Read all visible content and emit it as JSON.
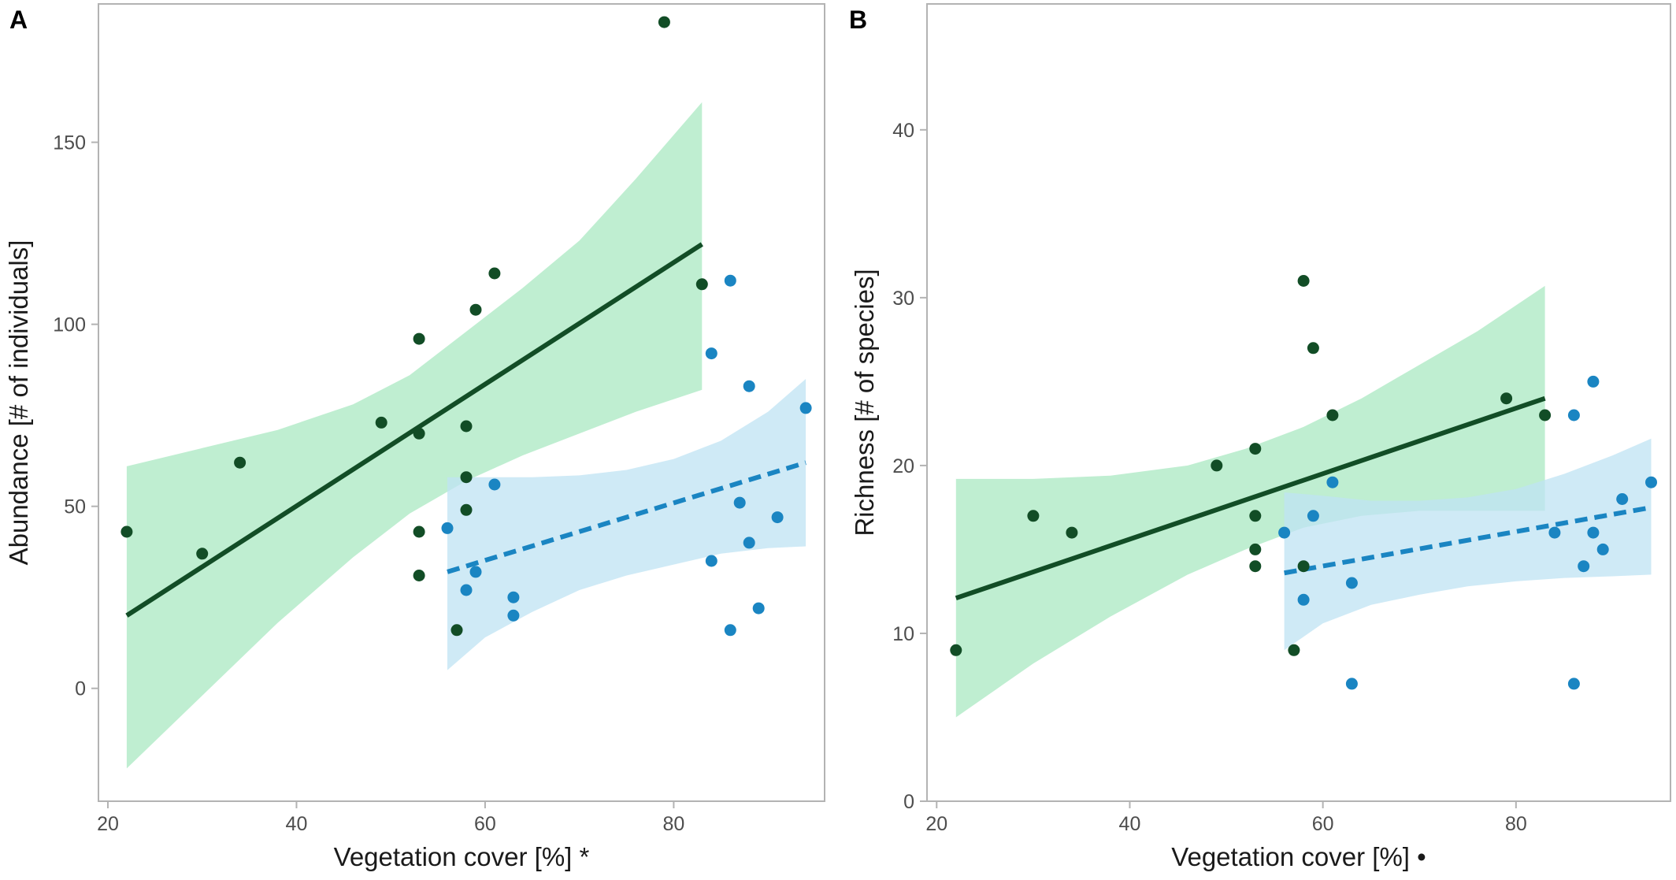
{
  "colors": {
    "dark_series": "#124d26",
    "blue_series": "#1a85c2",
    "green_band": "#a9e8c1",
    "blue_band": "#bfe3f3",
    "axis": "#b3b3b3",
    "tick_text": "#4d4d4d"
  },
  "chart_data": [
    {
      "panel_label": "A",
      "type": "scatter",
      "xlabel": "Vegetation cover [%] *",
      "ylabel": "Abundance [# of individuals]",
      "xlim": [
        19,
        96
      ],
      "ylim": [
        -31,
        188
      ],
      "xticks": [
        20,
        40,
        60,
        80
      ],
      "yticks": [
        0,
        50,
        100,
        150
      ],
      "grid": false,
      "series": [
        {
          "color": "#124d26",
          "band_color": "#a9e8c1",
          "line_style": "solid",
          "points": [
            [
              22,
              43
            ],
            [
              30,
              37
            ],
            [
              34,
              62
            ],
            [
              49,
              73
            ],
            [
              53,
              96
            ],
            [
              53,
              70
            ],
            [
              53,
              43
            ],
            [
              53,
              31
            ],
            [
              57,
              16
            ],
            [
              58,
              72
            ],
            [
              58,
              58
            ],
            [
              58,
              49
            ],
            [
              59,
              104
            ],
            [
              61,
              114
            ],
            [
              79,
              183
            ],
            [
              83,
              111
            ]
          ],
          "fit": {
            "x": [
              22,
              83
            ],
            "y": [
              20,
              122
            ]
          },
          "band": {
            "x": [
              22,
              30,
              38,
              46,
              52,
              58,
              64,
              70,
              76,
              83
            ],
            "lower": [
              -22,
              -2,
              18,
              36,
              48,
              57,
              64,
              70,
              76,
              82
            ],
            "upper": [
              61,
              66,
              71,
              78,
              86,
              98,
              110,
              123,
              140,
              161
            ]
          }
        },
        {
          "color": "#1a85c2",
          "band_color": "#bfe3f3",
          "line_style": "dashed",
          "points": [
            [
              56,
              44
            ],
            [
              58,
              27
            ],
            [
              59,
              32
            ],
            [
              61,
              56
            ],
            [
              63,
              25
            ],
            [
              63,
              20
            ],
            [
              84,
              92
            ],
            [
              84,
              35
            ],
            [
              86,
              112
            ],
            [
              86,
              16
            ],
            [
              87,
              51
            ],
            [
              88,
              83
            ],
            [
              88,
              40
            ],
            [
              89,
              22
            ],
            [
              91,
              47
            ],
            [
              94,
              77
            ]
          ],
          "fit": {
            "x": [
              56,
              94
            ],
            "y": [
              32,
              62
            ]
          },
          "band": {
            "x": [
              56,
              60,
              65,
              70,
              75,
              80,
              85,
              90,
              94
            ],
            "lower": [
              5,
              14,
              21,
              27,
              31,
              34,
              37,
              38.5,
              39
            ],
            "upper": [
              58,
              58,
              58,
              58.5,
              60,
              63,
              68,
              76,
              85
            ]
          }
        }
      ]
    },
    {
      "panel_label": "B",
      "type": "scatter",
      "xlabel": "Vegetation cover [%] •",
      "ylabel": "Richness [# of species]",
      "xlim": [
        19,
        96
      ],
      "ylim": [
        0,
        47.5
      ],
      "xticks": [
        20,
        40,
        60,
        80
      ],
      "yticks": [
        0,
        10,
        20,
        30,
        40
      ],
      "grid": false,
      "series": [
        {
          "color": "#124d26",
          "band_color": "#a9e8c1",
          "line_style": "solid",
          "points": [
            [
              22,
              9
            ],
            [
              30,
              17
            ],
            [
              34,
              16
            ],
            [
              49,
              20
            ],
            [
              53,
              21
            ],
            [
              53,
              17
            ],
            [
              53,
              15
            ],
            [
              53,
              14
            ],
            [
              57,
              9
            ],
            [
              58,
              31
            ],
            [
              58,
              14
            ],
            [
              59,
              27
            ],
            [
              61,
              23
            ],
            [
              79,
              24
            ],
            [
              83,
              23
            ]
          ],
          "fit": {
            "x": [
              22,
              83
            ],
            "y": [
              12.1,
              24
            ]
          },
          "band": {
            "x": [
              22,
              30,
              38,
              46,
              52,
              58,
              64,
              70,
              76,
              83
            ],
            "lower": [
              5,
              8.2,
              11,
              13.5,
              15,
              16.3,
              17,
              17.3,
              17.3,
              17.3
            ],
            "upper": [
              19.2,
              19.2,
              19.4,
              20,
              21,
              22.3,
              24,
              26,
              28,
              30.7
            ]
          }
        },
        {
          "color": "#1a85c2",
          "band_color": "#bfe3f3",
          "line_style": "dashed",
          "points": [
            [
              56,
              16
            ],
            [
              58,
              12
            ],
            [
              59,
              17
            ],
            [
              61,
              19
            ],
            [
              63,
              13
            ],
            [
              63,
              7
            ],
            [
              84,
              16
            ],
            [
              86,
              23
            ],
            [
              86,
              7
            ],
            [
              87,
              14
            ],
            [
              88,
              25
            ],
            [
              88,
              16
            ],
            [
              89,
              15
            ],
            [
              91,
              18
            ],
            [
              94,
              19
            ]
          ],
          "fit": {
            "x": [
              56,
              94
            ],
            "y": [
              13.6,
              17.5
            ]
          },
          "band": {
            "x": [
              56,
              60,
              65,
              70,
              75,
              80,
              85,
              90,
              94
            ],
            "lower": [
              9,
              10.6,
              11.7,
              12.3,
              12.8,
              13.1,
              13.3,
              13.4,
              13.5
            ],
            "upper": [
              18.4,
              18.2,
              17.9,
              17.9,
              18.1,
              18.6,
              19.5,
              20.6,
              21.6
            ]
          }
        }
      ]
    }
  ]
}
